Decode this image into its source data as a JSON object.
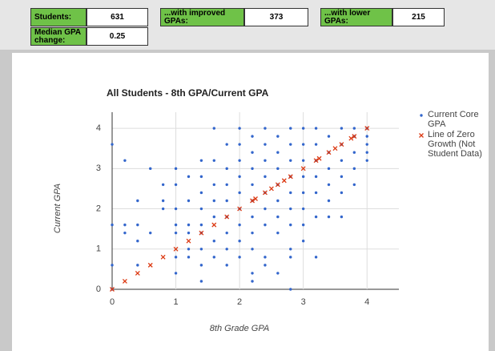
{
  "cells": [
    {
      "label": "Students:",
      "value": 631
    },
    {
      "label": "...with improved GPAs:",
      "value": 373
    },
    {
      "label": "...with lower GPAs:",
      "value": 215
    },
    {
      "label": "Median GPA change:",
      "value": 0.25
    }
  ],
  "chart_data": {
    "type": "scatter",
    "title": "All Students - 8th GPA/Current GPA",
    "x_label": "8th Grade GPA",
    "y_label": "Current GPA",
    "xlim": [
      0,
      4.5
    ],
    "ylim": [
      0,
      4.4
    ],
    "xticks": [
      0,
      1,
      2,
      3,
      4
    ],
    "yticks": [
      0,
      1,
      2,
      3,
      4
    ],
    "grid": true,
    "legend": "right",
    "series": [
      {
        "name": "Current Core GPA",
        "color": "#3366cc",
        "marker": "dot",
        "x": [
          0,
          0,
          0,
          0,
          0.2,
          0.2,
          0.2,
          0.4,
          0.4,
          0.4,
          0.4,
          0.6,
          0.6,
          0.8,
          0.8,
          0.8,
          1,
          1,
          1,
          1,
          1,
          1,
          1,
          1.2,
          1.2,
          1.2,
          1.2,
          1.2,
          1.2,
          1.4,
          1.4,
          1.4,
          1.4,
          1.4,
          1.4,
          1.4,
          1.4,
          1.4,
          1.6,
          1.6,
          1.6,
          1.6,
          1.6,
          1.6,
          1.6,
          1.8,
          1.8,
          1.8,
          1.8,
          1.8,
          1.8,
          1.8,
          1.8,
          2,
          2,
          2,
          2,
          2,
          2,
          2,
          2,
          2,
          2.2,
          2.2,
          2.2,
          2.2,
          2.2,
          2.2,
          2.2,
          2.2,
          2.2,
          2.2,
          2.4,
          2.4,
          2.4,
          2.4,
          2.4,
          2.4,
          2.4,
          2.4,
          2.4,
          2.6,
          2.6,
          2.6,
          2.6,
          2.6,
          2.6,
          2.6,
          2.6,
          2.8,
          2.8,
          2.8,
          2.8,
          2.8,
          2.8,
          2.8,
          2.8,
          2.8,
          2.8,
          3,
          3,
          3,
          3,
          3,
          3,
          3,
          3,
          3.2,
          3.2,
          3.2,
          3.2,
          3.2,
          3.2,
          3.2,
          3.4,
          3.4,
          3.4,
          3.4,
          3.4,
          3.4,
          3.6,
          3.6,
          3.6,
          3.6,
          3.6,
          3.6,
          3.8,
          3.8,
          3.8,
          3.8,
          3.8,
          4,
          4,
          4,
          4,
          4
        ],
        "values": [
          3.6,
          1.6,
          0.6,
          0,
          3.2,
          1.6,
          1.4,
          2.2,
          1.6,
          1.2,
          0.6,
          3.0,
          1.4,
          2.6,
          2.2,
          2.0,
          3.0,
          2.6,
          2.0,
          1.6,
          1.4,
          0.8,
          0.4,
          2.8,
          2.2,
          1.6,
          1.4,
          1.0,
          0.8,
          3.2,
          2.8,
          2.4,
          2.0,
          1.6,
          1.4,
          1.0,
          0.6,
          0.2,
          4.0,
          3.2,
          2.6,
          2.2,
          1.8,
          1.2,
          0.8,
          3.6,
          3.0,
          2.6,
          2.2,
          1.8,
          1.4,
          1.0,
          0.6,
          4.0,
          3.6,
          3.2,
          2.8,
          2.4,
          2.0,
          1.6,
          1.2,
          0.8,
          3.8,
          3.4,
          3.0,
          2.6,
          2.2,
          1.8,
          1.4,
          1.0,
          0.4,
          0.2,
          4.0,
          3.6,
          3.2,
          2.8,
          2.4,
          2.0,
          1.6,
          0.8,
          0.6,
          3.8,
          3.4,
          3.0,
          2.6,
          2.2,
          1.8,
          1.4,
          0.4,
          4.0,
          3.6,
          3.2,
          2.8,
          2.4,
          2.0,
          1.6,
          1.0,
          0.8,
          0,
          4.0,
          3.6,
          3.2,
          2.8,
          2.4,
          2.0,
          1.6,
          1.2,
          4.0,
          3.6,
          3.2,
          2.8,
          2.4,
          1.8,
          0.8,
          3.8,
          3.4,
          3.0,
          2.6,
          2.2,
          1.8,
          4.0,
          3.6,
          3.2,
          2.8,
          2.4,
          1.8,
          4.0,
          3.8,
          3.4,
          3.0,
          2.6,
          4.0,
          3.8,
          3.6,
          3.4,
          3.2
        ]
      },
      {
        "name": "Line of Zero Growth (Not Student Data)",
        "color": "#dc3912",
        "marker": "x",
        "x": [
          0,
          0.2,
          0.4,
          0.6,
          0.8,
          1,
          1.2,
          1.4,
          1.6,
          1.8,
          2,
          2.2,
          2.25,
          2.4,
          2.5,
          2.6,
          2.7,
          2.8,
          3,
          3.2,
          3.25,
          3.4,
          3.5,
          3.6,
          3.75,
          3.8,
          4
        ],
        "values": [
          0,
          0.2,
          0.4,
          0.6,
          0.8,
          1,
          1.2,
          1.4,
          1.6,
          1.8,
          2,
          2.2,
          2.25,
          2.4,
          2.5,
          2.6,
          2.7,
          2.8,
          3,
          3.2,
          3.25,
          3.4,
          3.5,
          3.6,
          3.75,
          3.8,
          4
        ]
      }
    ]
  }
}
